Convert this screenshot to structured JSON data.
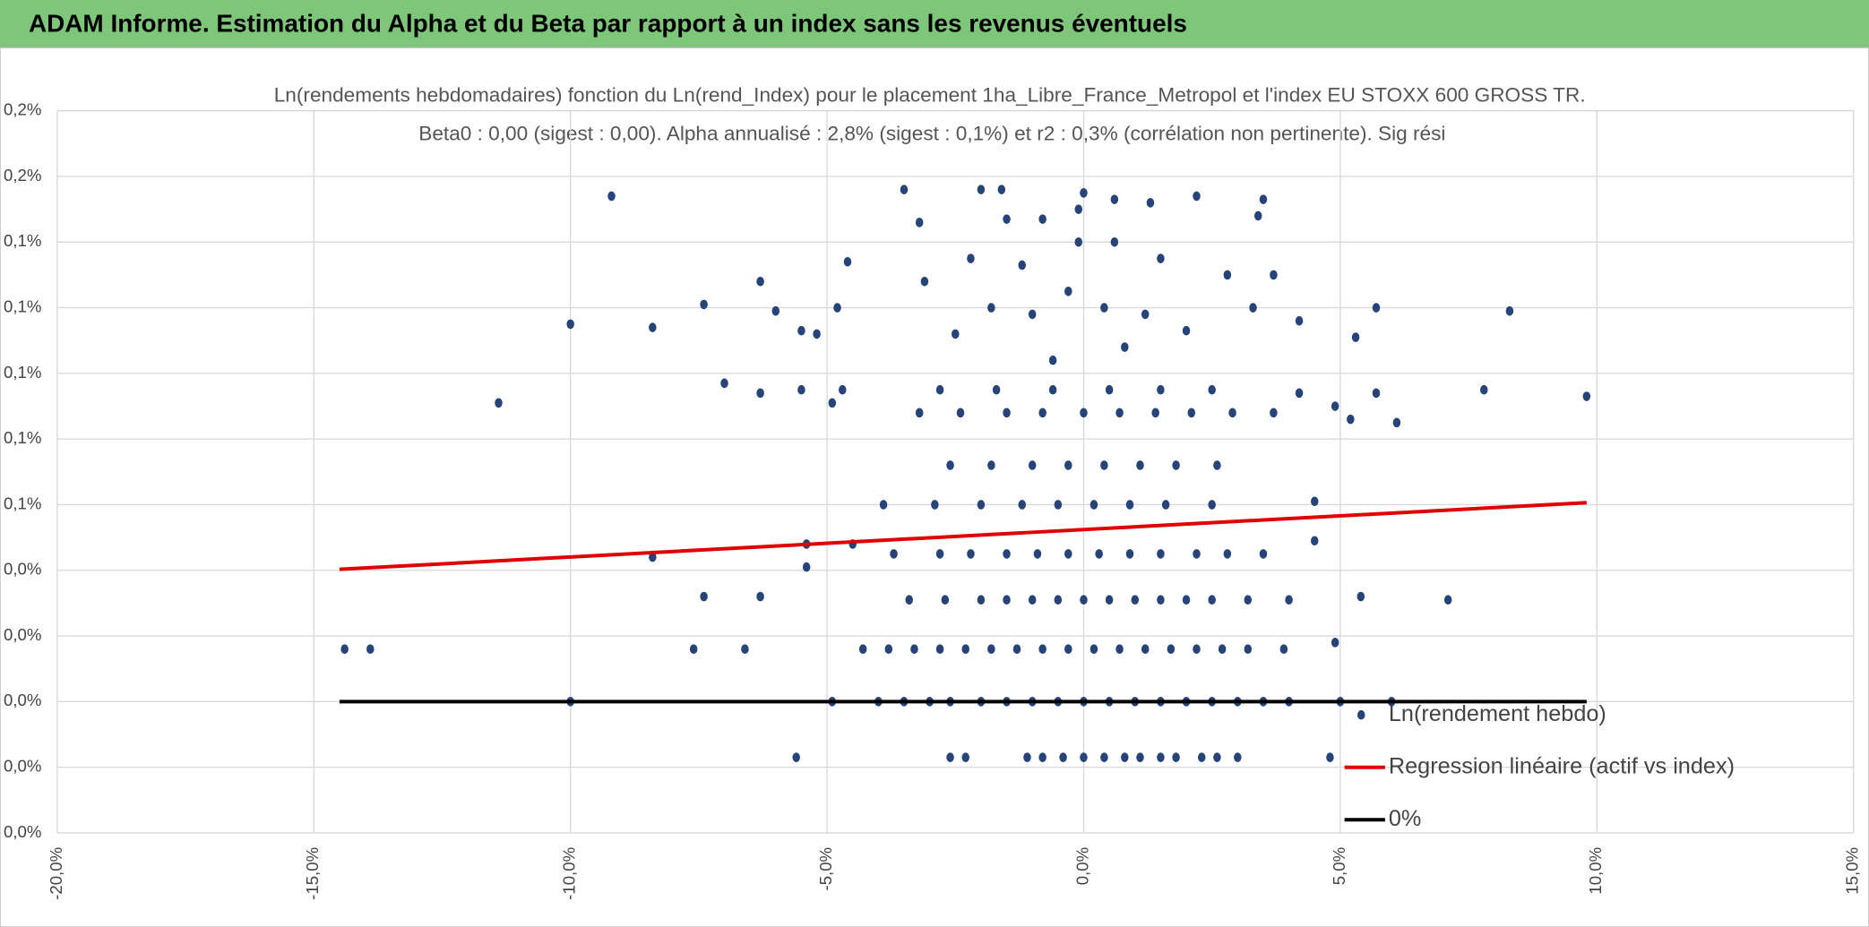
{
  "header": {
    "title": "ADAM Informe. Estimation du Alpha et du Beta par rapport à un index sans les revenus éventuels"
  },
  "chart_data": {
    "type": "scatter",
    "title": "Ln(rendements hebdomadaires) fonction du Ln(rend_Index) pour le placement 1ha_Libre_France_Metropol et l'index EU STOXX 600 GROSS TR.",
    "subtitle": "Beta0 : 0,00 (sigest : 0,00). Alpha annualisé : 2,8% (sigest : 0,1%) et r2 : 0,3% (corrélation non pertinente). Sig rési",
    "xlim": [
      -20,
      15
    ],
    "xticks": [
      {
        "value": -20,
        "label": "-20,0%"
      },
      {
        "value": -15,
        "label": "-15,0%"
      },
      {
        "value": -10,
        "label": "-10,0%"
      },
      {
        "value": -5,
        "label": "-5,0%"
      },
      {
        "value": 0,
        "label": "0,0%"
      },
      {
        "value": 5,
        "label": "5,0%"
      },
      {
        "value": 10,
        "label": "10,0%"
      },
      {
        "value": 15,
        "label": "15,0%"
      }
    ],
    "ylim": [
      -0.04,
      0.18
    ],
    "yticks": [
      {
        "value": -0.04,
        "label": "0,0%"
      },
      {
        "value": -0.02,
        "label": "0,0%"
      },
      {
        "value": 0,
        "label": "0,0%"
      },
      {
        "value": 0.02,
        "label": "0,0%"
      },
      {
        "value": 0.04,
        "label": "0,0%"
      },
      {
        "value": 0.06,
        "label": "0,1%"
      },
      {
        "value": 0.08,
        "label": "0,1%"
      },
      {
        "value": 0.1,
        "label": "0,1%"
      },
      {
        "value": 0.12,
        "label": "0,1%"
      },
      {
        "value": 0.14,
        "label": "0,1%"
      },
      {
        "value": 0.16,
        "label": "0,2%"
      },
      {
        "value": 0.18,
        "label": "0,2%"
      }
    ],
    "grid": true,
    "legend": "lower right",
    "series": [
      {
        "name": "Ln(rendement hebdo)",
        "kind": "points",
        "color": "#264478",
        "x": [
          -9.2,
          -10,
          -8.4,
          -11.4,
          -7.4,
          -7,
          -6.3,
          -6.0,
          -5.5,
          -5.2,
          -6.3,
          -5.5,
          -4.7,
          -4.9,
          -4.8,
          -4.6,
          -8.4,
          -7.4,
          -6.3,
          -5.4,
          -5.4,
          -4.5,
          -10,
          -5.6,
          -4.9,
          4.2,
          4.2,
          4.5,
          4.5,
          4.9,
          5.2,
          5.3,
          5.7,
          5.7,
          6.1,
          7.8,
          8.3,
          9.8,
          7.1,
          5.4,
          4.9,
          6.0,
          5.0,
          4.8,
          3.4,
          3.5,
          2.2,
          -3.5,
          -2.0,
          -1.6,
          0,
          0.6,
          1.3,
          -3.2,
          -1.5,
          -0.8,
          -0.1,
          -14.4,
          -13.9,
          -7.6,
          -6.6,
          -2.6,
          -2.3,
          -1.1,
          -0.8,
          -0.4,
          0,
          0.4,
          0.8,
          1.1,
          1.5,
          1.8,
          2.3,
          2.6,
          3.0,
          -4.0,
          -3.5,
          -3,
          -2.6,
          -2.0,
          -1.5,
          -1.0,
          -0.5,
          0,
          0.5,
          1.0,
          1.5,
          2.0,
          2.5,
          3.0,
          3.5,
          4.0,
          -4.3,
          -3.8,
          -3.3,
          -2.8,
          -2.3,
          -1.8,
          -1.3,
          -0.8,
          -0.3,
          0.2,
          0.7,
          1.2,
          1.7,
          2.2,
          2.7,
          3.2,
          3.9,
          -3.4,
          -2.7,
          -2.0,
          -1.5,
          -1.0,
          -0.5,
          0,
          0.5,
          1.0,
          1.5,
          2.0,
          2.5,
          3.2,
          4.0,
          -3.7,
          -2.8,
          -2.2,
          -1.5,
          -0.9,
          -0.3,
          0.3,
          0.9,
          1.5,
          2.2,
          2.8,
          3.5,
          -3.9,
          -2.9,
          -2,
          -1.2,
          -0.5,
          0.2,
          0.9,
          1.6,
          2.5,
          -2.6,
          -1.8,
          -1,
          -0.3,
          0.4,
          1.1,
          1.8,
          2.6,
          -3.2,
          -2.4,
          -1.5,
          -0.8,
          0,
          0.7,
          1.4,
          2.1,
          2.9,
          3.7,
          -2.8,
          -1.7,
          -0.6,
          0.5,
          1.5,
          2.5,
          -2.5,
          -1.8,
          -1,
          -0.3,
          0.4,
          1.2,
          2.0,
          3.3,
          -2.2,
          -1.2,
          -0.1,
          0.6,
          1.5,
          2.8,
          -3.1,
          3.7,
          -0.6,
          0.8
        ],
        "values": [
          0.154,
          0.115,
          0.114,
          0.091,
          0.121,
          0.097,
          0.128,
          0.119,
          0.113,
          0.112,
          0.094,
          0.095,
          0.095,
          0.091,
          0.12,
          0.134,
          0.044,
          0.032,
          0.032,
          0.041,
          0.048,
          0.048,
          0,
          -0.017,
          0,
          0.094,
          0.116,
          0.061,
          0.049,
          0.09,
          0.086,
          0.111,
          0.094,
          0.12,
          0.085,
          0.095,
          0.119,
          0.093,
          0.031,
          0.032,
          0.018,
          0,
          0,
          -0.017,
          0.148,
          0.153,
          0.154,
          0.156,
          0.156,
          0.156,
          0.155,
          0.153,
          0.152,
          0.146,
          0.147,
          0.147,
          0.15,
          0.016,
          0.016,
          0.016,
          0.016,
          -0.017,
          -0.017,
          -0.017,
          -0.017,
          -0.017,
          -0.017,
          -0.017,
          -0.017,
          -0.017,
          -0.017,
          -0.017,
          -0.017,
          -0.017,
          -0.017,
          0,
          0,
          0,
          0,
          0,
          0,
          0,
          0,
          0,
          0,
          0,
          0,
          0,
          0,
          0,
          0,
          0,
          0.016,
          0.016,
          0.016,
          0.016,
          0.016,
          0.016,
          0.016,
          0.016,
          0.016,
          0.016,
          0.016,
          0.016,
          0.016,
          0.016,
          0.016,
          0.016,
          0.016,
          0.031,
          0.031,
          0.031,
          0.031,
          0.031,
          0.031,
          0.031,
          0.031,
          0.031,
          0.031,
          0.031,
          0.031,
          0.031,
          0.031,
          0.045,
          0.045,
          0.045,
          0.045,
          0.045,
          0.045,
          0.045,
          0.045,
          0.045,
          0.045,
          0.045,
          0.045,
          0.06,
          0.06,
          0.06,
          0.06,
          0.06,
          0.06,
          0.06,
          0.06,
          0.06,
          0.072,
          0.072,
          0.072,
          0.072,
          0.072,
          0.072,
          0.072,
          0.072,
          0.088,
          0.088,
          0.088,
          0.088,
          0.088,
          0.088,
          0.088,
          0.088,
          0.088,
          0.088,
          0.095,
          0.095,
          0.095,
          0.095,
          0.095,
          0.095,
          0.112,
          0.12,
          0.118,
          0.125,
          0.12,
          0.118,
          0.113,
          0.12,
          0.135,
          0.133,
          0.14,
          0.14,
          0.135,
          0.13,
          0.128,
          0.13,
          0.104,
          0.108
        ]
      },
      {
        "name": "Regression linéaire (actif vs index)",
        "kind": "line",
        "color": "#e00000",
        "x": [
          -14.5,
          9.8
        ],
        "values": [
          0.0403,
          0.0606
        ]
      },
      {
        "name": "0%",
        "kind": "line",
        "color": "#000000",
        "x": [
          -14.5,
          9.8
        ],
        "values": [
          0,
          0
        ]
      }
    ]
  }
}
